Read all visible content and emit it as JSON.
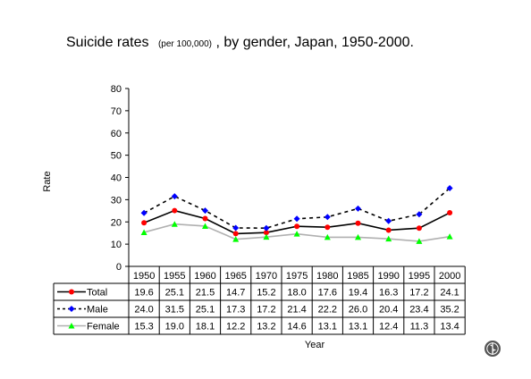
{
  "chart_data": {
    "type": "line",
    "title": "Suicide rates",
    "title_note": "(per 100,000)",
    "subtitle": ", by gender, Japan, 1950-2000.",
    "xlabel": "Year",
    "ylabel": "Rate",
    "ylim": [
      0,
      80
    ],
    "yticks": [
      "0",
      "10",
      "20",
      "30",
      "40",
      "50",
      "60",
      "70",
      "80"
    ],
    "categories": [
      "1950",
      "1955",
      "1960",
      "1965",
      "1970",
      "1975",
      "1980",
      "1985",
      "1990",
      "1995",
      "2000"
    ],
    "grid": false,
    "legend": "data-table-left",
    "series": [
      {
        "name": "Total",
        "color": "#000000",
        "marker": "circle",
        "marker_color": "#ff0000",
        "line_style": "solid",
        "values": [
          19.6,
          25.1,
          21.5,
          14.7,
          15.2,
          18.0,
          17.6,
          19.4,
          16.3,
          17.2,
          24.1
        ],
        "labels": [
          "19.6",
          "25.1",
          "21.5",
          "14.7",
          "15.2",
          "18.0",
          "17.6",
          "19.4",
          "16.3",
          "17.2",
          "24.1"
        ]
      },
      {
        "name": "Male",
        "color": "#000000",
        "marker": "diamond",
        "marker_color": "#0000ff",
        "line_style": "dashed",
        "values": [
          24.0,
          31.5,
          25.1,
          17.3,
          17.2,
          21.4,
          22.2,
          26.0,
          20.4,
          23.4,
          35.2
        ],
        "labels": [
          "24.0",
          "31.5",
          "25.1",
          "17.3",
          "17.2",
          "21.4",
          "22.2",
          "26.0",
          "20.4",
          "23.4",
          "35.2"
        ]
      },
      {
        "name": "Female",
        "color": "#b0b0b0",
        "marker": "triangle",
        "marker_color": "#00ff00",
        "line_style": "solid",
        "values": [
          15.3,
          19.0,
          18.1,
          12.2,
          13.2,
          14.6,
          13.1,
          13.1,
          12.4,
          11.3,
          13.4
        ],
        "labels": [
          "15.3",
          "19.0",
          "18.1",
          "12.2",
          "13.2",
          "14.6",
          "13.1",
          "13.1",
          "12.4",
          "11.3",
          "13.4"
        ]
      }
    ]
  },
  "logo": {
    "name": "who-emblem-icon"
  }
}
